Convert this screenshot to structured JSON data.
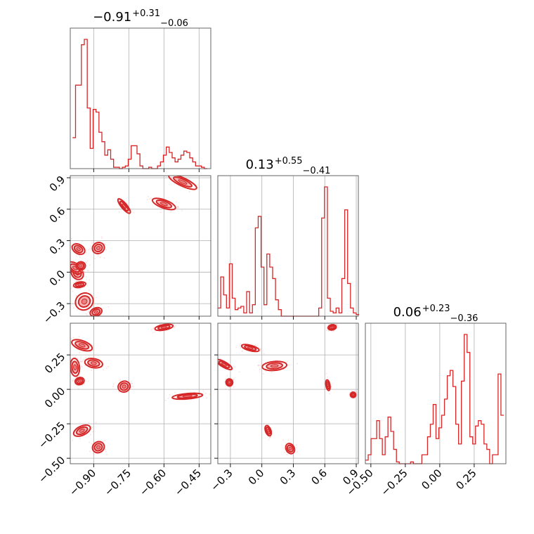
{
  "chart_data": {
    "type": "corner",
    "color": "#d62728",
    "grid": true,
    "parameters": [
      {
        "title_value": "0.91",
        "title_sign": "−",
        "title_plus": "+0.31",
        "title_minus": "−0.06",
        "range": [
          -1.0,
          -0.4
        ],
        "ticks": [
          -0.9,
          -0.75,
          -0.6,
          -0.45
        ],
        "tick_labels": [
          "−0.90",
          "−0.75",
          "−0.60",
          "−0.45"
        ]
      },
      {
        "title_value": "0.13",
        "title_sign": "",
        "title_plus": "+0.55",
        "title_minus": "−0.41",
        "range": [
          -0.42,
          0.92
        ],
        "ticks": [
          -0.3,
          0.0,
          0.3,
          0.6,
          0.9
        ],
        "tick_labels": [
          "−0.3",
          "0.0",
          "0.3",
          "0.6",
          "0.9"
        ]
      },
      {
        "title_value": "0.06",
        "title_sign": "",
        "title_plus": "+0.23",
        "title_minus": "−0.36",
        "range": [
          -0.54,
          0.48
        ],
        "ticks": [
          -0.5,
          -0.25,
          0.0,
          0.25
        ],
        "tick_labels": [
          "−0.50",
          "−0.25",
          "0.00",
          "0.25"
        ]
      }
    ],
    "histograms": [
      {
        "edges_from": -0.99,
        "bin_width": 0.0125,
        "counts": [
          0.23,
          0.62,
          0.62,
          0.92,
          0.96,
          0.45,
          0.15,
          0.44,
          0.42,
          0.27,
          0.2,
          0.1,
          0.14,
          0.07,
          0.01,
          0.01,
          0,
          0.01,
          0.02,
          0.07,
          0.17,
          0.17,
          0.11,
          0.02,
          0,
          0,
          0.01,
          0,
          0,
          0.02,
          0.05,
          0.1,
          0.16,
          0.12,
          0.08,
          0.05,
          0.07,
          0.1,
          0.13,
          0.12,
          0.08,
          0.05,
          0.02,
          0.02,
          0.01,
          0
        ]
      },
      {
        "edges_from": -0.42,
        "bin_width": 0.0275,
        "counts": [
          0.05,
          0.24,
          0.13,
          0.05,
          0.32,
          0.11,
          0.04,
          0.05,
          0.06,
          0.02,
          0.15,
          0.02,
          0.07,
          0.54,
          0.61,
          0.3,
          0.07,
          0.38,
          0.3,
          0.23,
          0.1,
          0.04,
          0,
          0,
          0,
          0,
          0,
          0,
          0,
          0,
          0,
          0,
          0,
          0,
          0,
          0.05,
          0.6,
          0.79,
          0.11,
          0.03,
          0.02,
          0.05,
          0.02,
          0.23,
          0.65,
          0.2,
          0.05,
          0.02,
          0.01
        ]
      },
      {
        "edges_from": -0.54,
        "bin_width": 0.0205,
        "counts": [
          0.02,
          0.05,
          0.14,
          0.14,
          0.24,
          0.14,
          0.05,
          0.15,
          0.26,
          0.18,
          0.08,
          0.01,
          0.0,
          0.0,
          0.0,
          0.0,
          0.01,
          0.0,
          0.0,
          0.0,
          0.05,
          0.05,
          0.15,
          0.22,
          0.33,
          0.14,
          0.2,
          0.27,
          0.36,
          0.49,
          0.52,
          0.43,
          0.22,
          0.11,
          0.46,
          0.72,
          0.62,
          0.15,
          0.11,
          0.21,
          0.24,
          0.22,
          0.11,
          0.08,
          0.0,
          0.05,
          0.05,
          0.5,
          0.27
        ]
      }
    ],
    "clusters_2d": {
      "x0_x1": [
        [
          -0.97,
          -0.01,
          0.018,
          0.05,
          40
        ],
        [
          -0.98,
          0.04,
          0.015,
          0.06,
          55
        ],
        [
          -0.955,
          0.06,
          0.015,
          0.03,
          5
        ],
        [
          -0.965,
          0.22,
          0.015,
          0.05,
          60
        ],
        [
          -0.88,
          0.23,
          0.02,
          0.04,
          25
        ],
        [
          -0.96,
          -0.12,
          0.02,
          0.02,
          10
        ],
        [
          -0.94,
          -0.28,
          0.03,
          0.06,
          35
        ],
        [
          -0.89,
          -0.38,
          0.02,
          0.03,
          20
        ],
        [
          -0.77,
          0.63,
          0.03,
          0.02,
          130
        ],
        [
          -0.6,
          0.65,
          0.04,
          0.03,
          160
        ],
        [
          -0.52,
          0.86,
          0.05,
          0.03,
          155
        ]
      ],
      "x0_x2": [
        [
          -0.95,
          0.32,
          0.015,
          0.06,
          70
        ],
        [
          -0.98,
          0.16,
          0.015,
          0.05,
          5
        ],
        [
          -0.96,
          0.06,
          0.015,
          0.02,
          15
        ],
        [
          -0.9,
          0.19,
          0.015,
          0.05,
          80
        ],
        [
          -0.77,
          0.02,
          0.02,
          0.03,
          20
        ],
        [
          -0.6,
          0.45,
          0.03,
          0.015,
          10
        ],
        [
          -0.5,
          -0.05,
          0.05,
          0.015,
          5
        ],
        [
          -0.95,
          -0.3,
          0.015,
          0.05,
          115
        ],
        [
          -0.88,
          -0.42,
          0.02,
          0.03,
          30
        ]
      ],
      "x1_x2": [
        [
          -0.36,
          0.18,
          0.02,
          0.05,
          60
        ],
        [
          -0.31,
          0.05,
          0.025,
          0.02,
          10
        ],
        [
          -0.11,
          0.3,
          0.02,
          0.05,
          75
        ],
        [
          0.12,
          0.17,
          0.09,
          0.025,
          5
        ],
        [
          0.06,
          -0.3,
          0.02,
          0.03,
          20
        ],
        [
          0.27,
          -0.43,
          0.03,
          0.03,
          30
        ],
        [
          0.63,
          0.03,
          0.015,
          0.03,
          10
        ],
        [
          0.67,
          0.45,
          0.03,
          0.015,
          10
        ],
        [
          0.87,
          -0.04,
          0.02,
          0.015,
          5
        ]
      ]
    }
  }
}
